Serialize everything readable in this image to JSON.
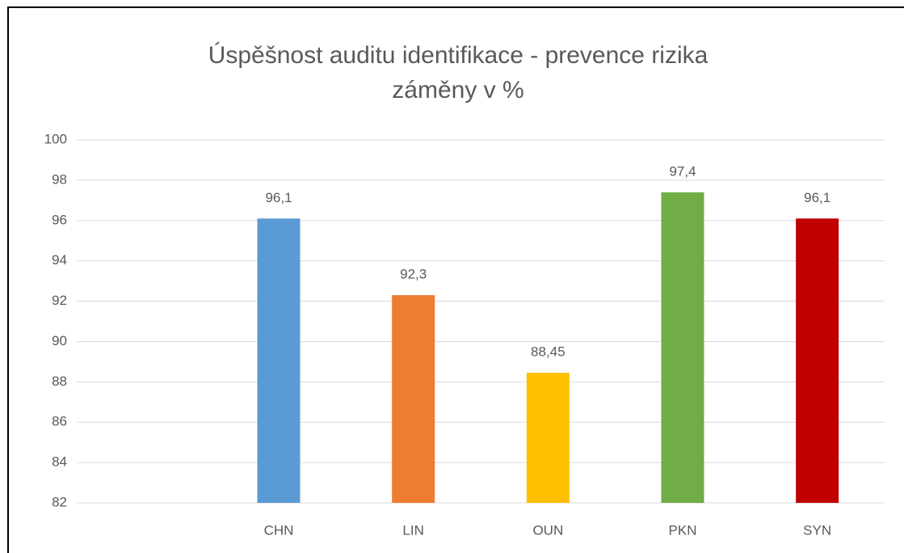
{
  "chart_data": {
    "type": "bar",
    "title": [
      "Úspěšnost auditu identifikace - prevence rizika",
      "záměny v %"
    ],
    "categories": [
      null,
      "CHN",
      "LIN",
      "OUN",
      "PKN",
      "SYN"
    ],
    "values": [
      null,
      96.1,
      92.3,
      88.45,
      97.4,
      96.1
    ],
    "value_labels": [
      null,
      "96,1",
      "92,3",
      "88,45",
      "97,4",
      "96,1"
    ],
    "colors": [
      null,
      "#5b9bd5",
      "#ed7d31",
      "#ffc000",
      "#70ad47",
      "#c00000"
    ],
    "ylim": [
      82,
      100
    ],
    "yticks": [
      82,
      84,
      86,
      88,
      90,
      92,
      94,
      96,
      98,
      100
    ],
    "grid": true
  }
}
